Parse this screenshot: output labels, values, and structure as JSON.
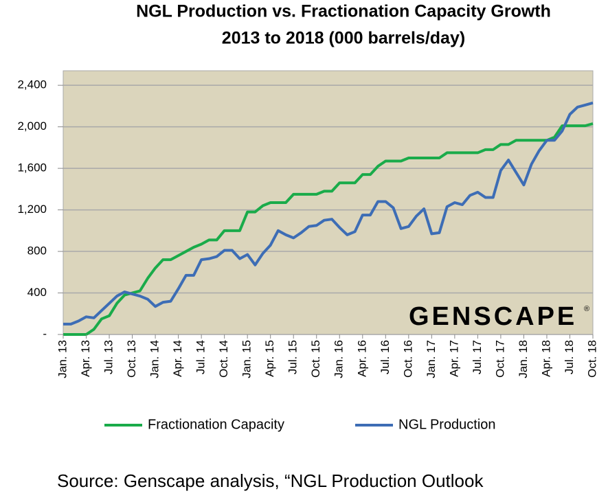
{
  "chart_data": {
    "type": "line",
    "title": "NGL Production vs. Fractionation Capacity Growth",
    "subtitle": "2013 to 2018 (000 barrels/day)",
    "source": "Source: Genscape analysis, “NGL Production Outlook",
    "logo": "GENSCAPE",
    "logo_mark": "®",
    "categories": [
      "Jan. 13",
      null,
      null,
      "Apr. 13",
      null,
      null,
      "Jul. 13",
      null,
      null,
      "Oct. 13",
      null,
      null,
      "Jan. 14",
      null,
      null,
      "Apr. 14",
      null,
      null,
      "Jul. 14",
      null,
      null,
      "Oct. 14",
      null,
      null,
      "Jan. 15",
      null,
      null,
      "Apr. 15",
      null,
      null,
      "Jul. 15",
      null,
      null,
      "Oct. 15",
      null,
      null,
      "Jan. 16",
      null,
      null,
      "Apr. 16",
      null,
      null,
      "Jul. 16",
      null,
      null,
      "Oct. 16",
      null,
      null,
      "Jan. 17",
      null,
      null,
      "Apr. 17",
      null,
      null,
      "Jul. 17",
      null,
      null,
      "Oct. 17",
      null,
      null,
      "Jan. 18",
      null,
      null,
      "Apr. 18",
      null,
      null,
      "Jul. 18",
      null,
      null,
      "Oct. 18"
    ],
    "series": [
      {
        "name": "Fractionation Capacity",
        "color": "#1aab4a",
        "values": [
          0,
          0,
          0,
          0,
          50,
          150,
          180,
          300,
          380,
          400,
          420,
          540,
          640,
          720,
          720,
          760,
          800,
          840,
          870,
          910,
          910,
          1000,
          1000,
          1000,
          1180,
          1180,
          1240,
          1270,
          1270,
          1270,
          1350,
          1350,
          1350,
          1350,
          1380,
          1380,
          1460,
          1460,
          1460,
          1540,
          1540,
          1620,
          1670,
          1670,
          1670,
          1700,
          1700,
          1700,
          1700,
          1700,
          1750,
          1750,
          1750,
          1750,
          1750,
          1780,
          1780,
          1830,
          1830,
          1870,
          1870,
          1870,
          1870,
          1870,
          1900,
          2010,
          2010,
          2010,
          2010,
          2030
        ]
      },
      {
        "name": "NGL Production",
        "color": "#3d6db5",
        "values": [
          100,
          100,
          130,
          170,
          160,
          230,
          300,
          370,
          410,
          390,
          370,
          340,
          270,
          310,
          320,
          440,
          570,
          570,
          720,
          730,
          750,
          810,
          810,
          730,
          770,
          670,
          780,
          860,
          1000,
          960,
          930,
          980,
          1040,
          1050,
          1100,
          1110,
          1030,
          960,
          990,
          1150,
          1150,
          1280,
          1280,
          1220,
          1020,
          1040,
          1140,
          1210,
          970,
          980,
          1230,
          1270,
          1250,
          1340,
          1370,
          1320,
          1320,
          1580,
          1680,
          1560,
          1440,
          1640,
          1770,
          1870,
          1870,
          1960,
          2120,
          2190,
          2210,
          2230
        ]
      }
    ],
    "ylim": [
      0,
      2540
    ],
    "yticks": [
      {
        "value": 0,
        "label": "-"
      },
      400,
      800,
      {
        "value": 1200,
        "label": "1,200"
      },
      {
        "value": 1600,
        "label": "1,600"
      },
      {
        "value": 2000,
        "label": "2,000"
      },
      {
        "value": 2400,
        "label": "2,400"
      }
    ],
    "grid": true,
    "legend": "bottom"
  }
}
